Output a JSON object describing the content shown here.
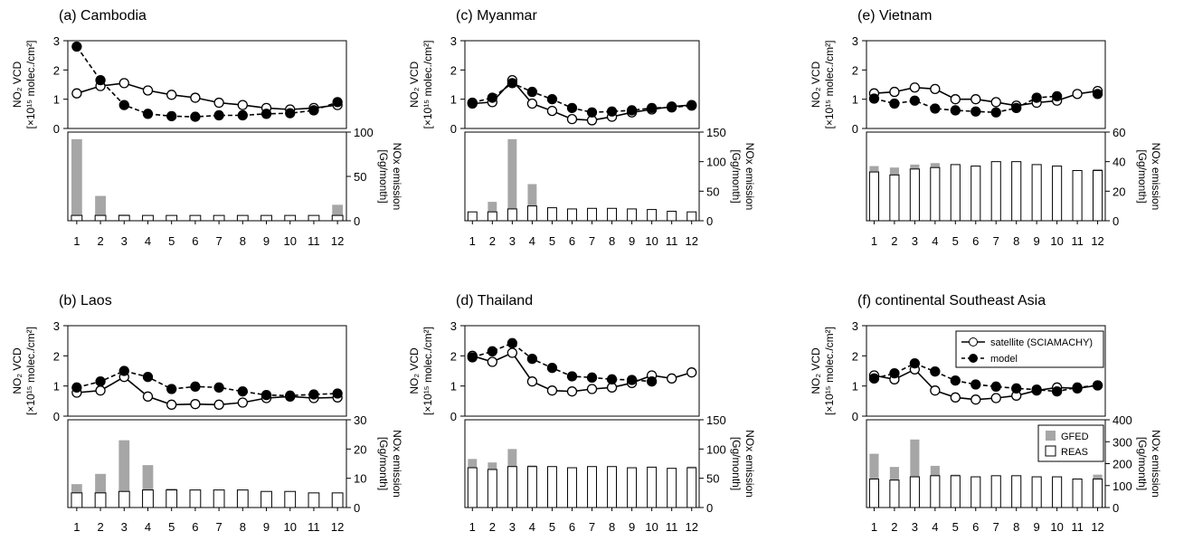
{
  "shared": {
    "months": [
      "1",
      "2",
      "3",
      "4",
      "5",
      "6",
      "7",
      "8",
      "9",
      "10",
      "11",
      "12"
    ],
    "ylabel_top_line1": "NO₂ VCD",
    "ylabel_top_line2": "[×10¹⁵ molec./cm²]",
    "ylabel_bottom_line1": "NOx emission",
    "ylabel_bottom_line2": "[Gg/month]",
    "colors": {
      "gfed": "#a6a6a6",
      "reas": "#ffffff",
      "line": "#000000"
    }
  },
  "legend_lines": {
    "satellite": "satellite (SCIAMACHY)",
    "model": "model"
  },
  "legend_bars": {
    "gfed": "GFED",
    "reas": "REAS"
  },
  "chart_data": [
    {
      "type": "line+stacked-bar",
      "title": "(a) Cambodia",
      "top": {
        "ylim": [
          0,
          3
        ],
        "yticks": [
          "0",
          "1",
          "2",
          "3"
        ],
        "series": [
          {
            "name": "satellite (SCIAMACHY)",
            "style": "solid-open-circle",
            "values": [
              1.2,
              1.45,
              1.55,
              1.3,
              1.15,
              1.05,
              0.88,
              0.8,
              0.7,
              0.65,
              0.7,
              0.8
            ]
          },
          {
            "name": "model",
            "style": "dashed-filled-circle",
            "values": [
              2.8,
              1.65,
              0.8,
              0.5,
              0.42,
              0.4,
              0.45,
              0.45,
              0.5,
              0.52,
              0.62,
              0.9
            ]
          }
        ]
      },
      "bottom": {
        "ylim": [
          0,
          100
        ],
        "yticks": [
          "0",
          "50",
          "100"
        ],
        "reas": [
          6,
          6,
          6,
          6,
          6,
          6,
          6,
          6,
          6,
          6,
          6,
          6
        ],
        "gfed": [
          86,
          22,
          1,
          0,
          0,
          0,
          0,
          0,
          0,
          0,
          0,
          12
        ]
      }
    },
    {
      "type": "line+stacked-bar",
      "title": "(b) Laos",
      "top": {
        "ylim": [
          0,
          3
        ],
        "yticks": [
          "0",
          "1",
          "2",
          "3"
        ],
        "series": [
          {
            "name": "satellite (SCIAMACHY)",
            "style": "solid-open-circle",
            "values": [
              0.78,
              0.85,
              1.3,
              0.65,
              0.38,
              0.4,
              0.38,
              0.45,
              0.6,
              0.65,
              0.6,
              0.62
            ]
          },
          {
            "name": "model",
            "style": "dashed-filled-circle",
            "values": [
              0.95,
              1.15,
              1.5,
              1.3,
              0.9,
              0.98,
              0.95,
              0.82,
              0.7,
              0.68,
              0.72,
              0.75
            ]
          }
        ]
      },
      "bottom": {
        "ylim": [
          0,
          30
        ],
        "yticks": [
          "0",
          "10",
          "20",
          "30"
        ],
        "reas": [
          5,
          5,
          5.5,
          6,
          6,
          6,
          6,
          6,
          5.5,
          5.5,
          5,
          5
        ],
        "gfed": [
          3,
          6.5,
          17.5,
          8.5,
          0.5,
          0,
          0,
          0,
          0,
          0,
          0,
          0
        ]
      }
    },
    {
      "type": "line+stacked-bar",
      "title": "(c) Myanmar",
      "top": {
        "ylim": [
          0,
          3
        ],
        "yticks": [
          "0",
          "1",
          "2",
          "3"
        ],
        "series": [
          {
            "name": "satellite (SCIAMACHY)",
            "style": "solid-open-circle",
            "values": [
              0.85,
              0.9,
              1.65,
              0.85,
              0.6,
              0.32,
              0.28,
              0.4,
              0.55,
              0.65,
              0.75,
              0.8
            ]
          },
          {
            "name": "model",
            "style": "dashed-filled-circle",
            "values": [
              0.88,
              1.05,
              1.55,
              1.25,
              1.0,
              0.7,
              0.55,
              0.58,
              0.62,
              0.7,
              0.72,
              0.78
            ]
          }
        ]
      },
      "bottom": {
        "ylim": [
          0,
          150
        ],
        "yticks": [
          "0",
          "50",
          "100",
          "150"
        ],
        "reas": [
          15,
          15,
          20,
          25,
          22,
          20,
          21,
          21,
          20,
          19,
          16,
          15
        ],
        "gfed": [
          0,
          17,
          118,
          37,
          0,
          0,
          0,
          0,
          0,
          0,
          0,
          0
        ]
      }
    },
    {
      "type": "line+stacked-bar",
      "title": "(d) Thailand",
      "top": {
        "ylim": [
          0,
          3
        ],
        "yticks": [
          "0",
          "1",
          "2",
          "3"
        ],
        "series": [
          {
            "name": "satellite (SCIAMACHY)",
            "style": "solid-open-circle",
            "values": [
              2.0,
              1.8,
              2.1,
              1.15,
              0.85,
              0.82,
              0.9,
              0.95,
              1.1,
              1.35,
              1.25,
              1.45
            ]
          },
          {
            "name": "model",
            "style": "dashed-filled-circle",
            "values": [
              1.95,
              2.15,
              2.42,
              1.9,
              1.6,
              1.32,
              1.28,
              1.22,
              1.2,
              1.15,
              null,
              null
            ]
          }
        ]
      },
      "bottom": {
        "ylim": [
          0,
          150
        ],
        "yticks": [
          "0",
          "50",
          "100",
          "150"
        ],
        "reas": [
          68,
          65,
          70,
          70,
          70,
          68,
          70,
          70,
          68,
          69,
          67,
          68
        ],
        "gfed": [
          15,
          12,
          30,
          2,
          0,
          0,
          0,
          0,
          0,
          0,
          0,
          2
        ]
      }
    },
    {
      "type": "line+stacked-bar",
      "title": "(e) Vietnam",
      "top": {
        "ylim": [
          0,
          3
        ],
        "yticks": [
          "0",
          "1",
          "2",
          "3"
        ],
        "series": [
          {
            "name": "satellite (SCIAMACHY)",
            "style": "solid-open-circle",
            "values": [
              1.2,
              1.25,
              1.4,
              1.35,
              1.0,
              1.0,
              0.9,
              0.78,
              0.88,
              0.95,
              1.18,
              1.28
            ]
          },
          {
            "name": "model",
            "style": "dashed-filled-circle",
            "values": [
              1.02,
              0.85,
              0.95,
              0.68,
              0.62,
              0.58,
              0.55,
              0.7,
              1.05,
              1.1,
              null,
              1.18
            ]
          }
        ]
      },
      "bottom": {
        "ylim": [
          0,
          60
        ],
        "yticks": [
          "0",
          "20",
          "40",
          "60"
        ],
        "reas": [
          33,
          31,
          35,
          36,
          38,
          37,
          40,
          40,
          38,
          37,
          34,
          34
        ],
        "gfed": [
          4,
          5,
          3,
          3,
          0,
          0,
          0,
          0,
          0,
          0,
          0,
          1
        ]
      }
    },
    {
      "type": "line+stacked-bar",
      "title": "(f) continental Southeast Asia",
      "top": {
        "ylim": [
          0,
          3
        ],
        "yticks": [
          "0",
          "1",
          "2",
          "3"
        ],
        "series": [
          {
            "name": "satellite (SCIAMACHY)",
            "style": "solid-open-circle",
            "values": [
              1.35,
              1.22,
              1.55,
              0.85,
              0.62,
              0.55,
              0.6,
              0.68,
              0.85,
              0.95,
              0.92,
              1.02
            ]
          },
          {
            "name": "model",
            "style": "dashed-filled-circle",
            "values": [
              1.25,
              1.42,
              1.75,
              1.48,
              1.18,
              1.05,
              0.98,
              0.92,
              0.88,
              0.82,
              0.95,
              1.02
            ]
          }
        ]
      },
      "bottom": {
        "ylim": [
          0,
          400
        ],
        "yticks": [
          "0",
          "100",
          "200",
          "300",
          "400"
        ],
        "reas": [
          130,
          125,
          140,
          145,
          145,
          140,
          145,
          145,
          140,
          140,
          130,
          130
        ],
        "gfed": [
          115,
          60,
          170,
          45,
          5,
          0,
          0,
          0,
          0,
          0,
          0,
          20
        ]
      },
      "legend": true
    }
  ]
}
